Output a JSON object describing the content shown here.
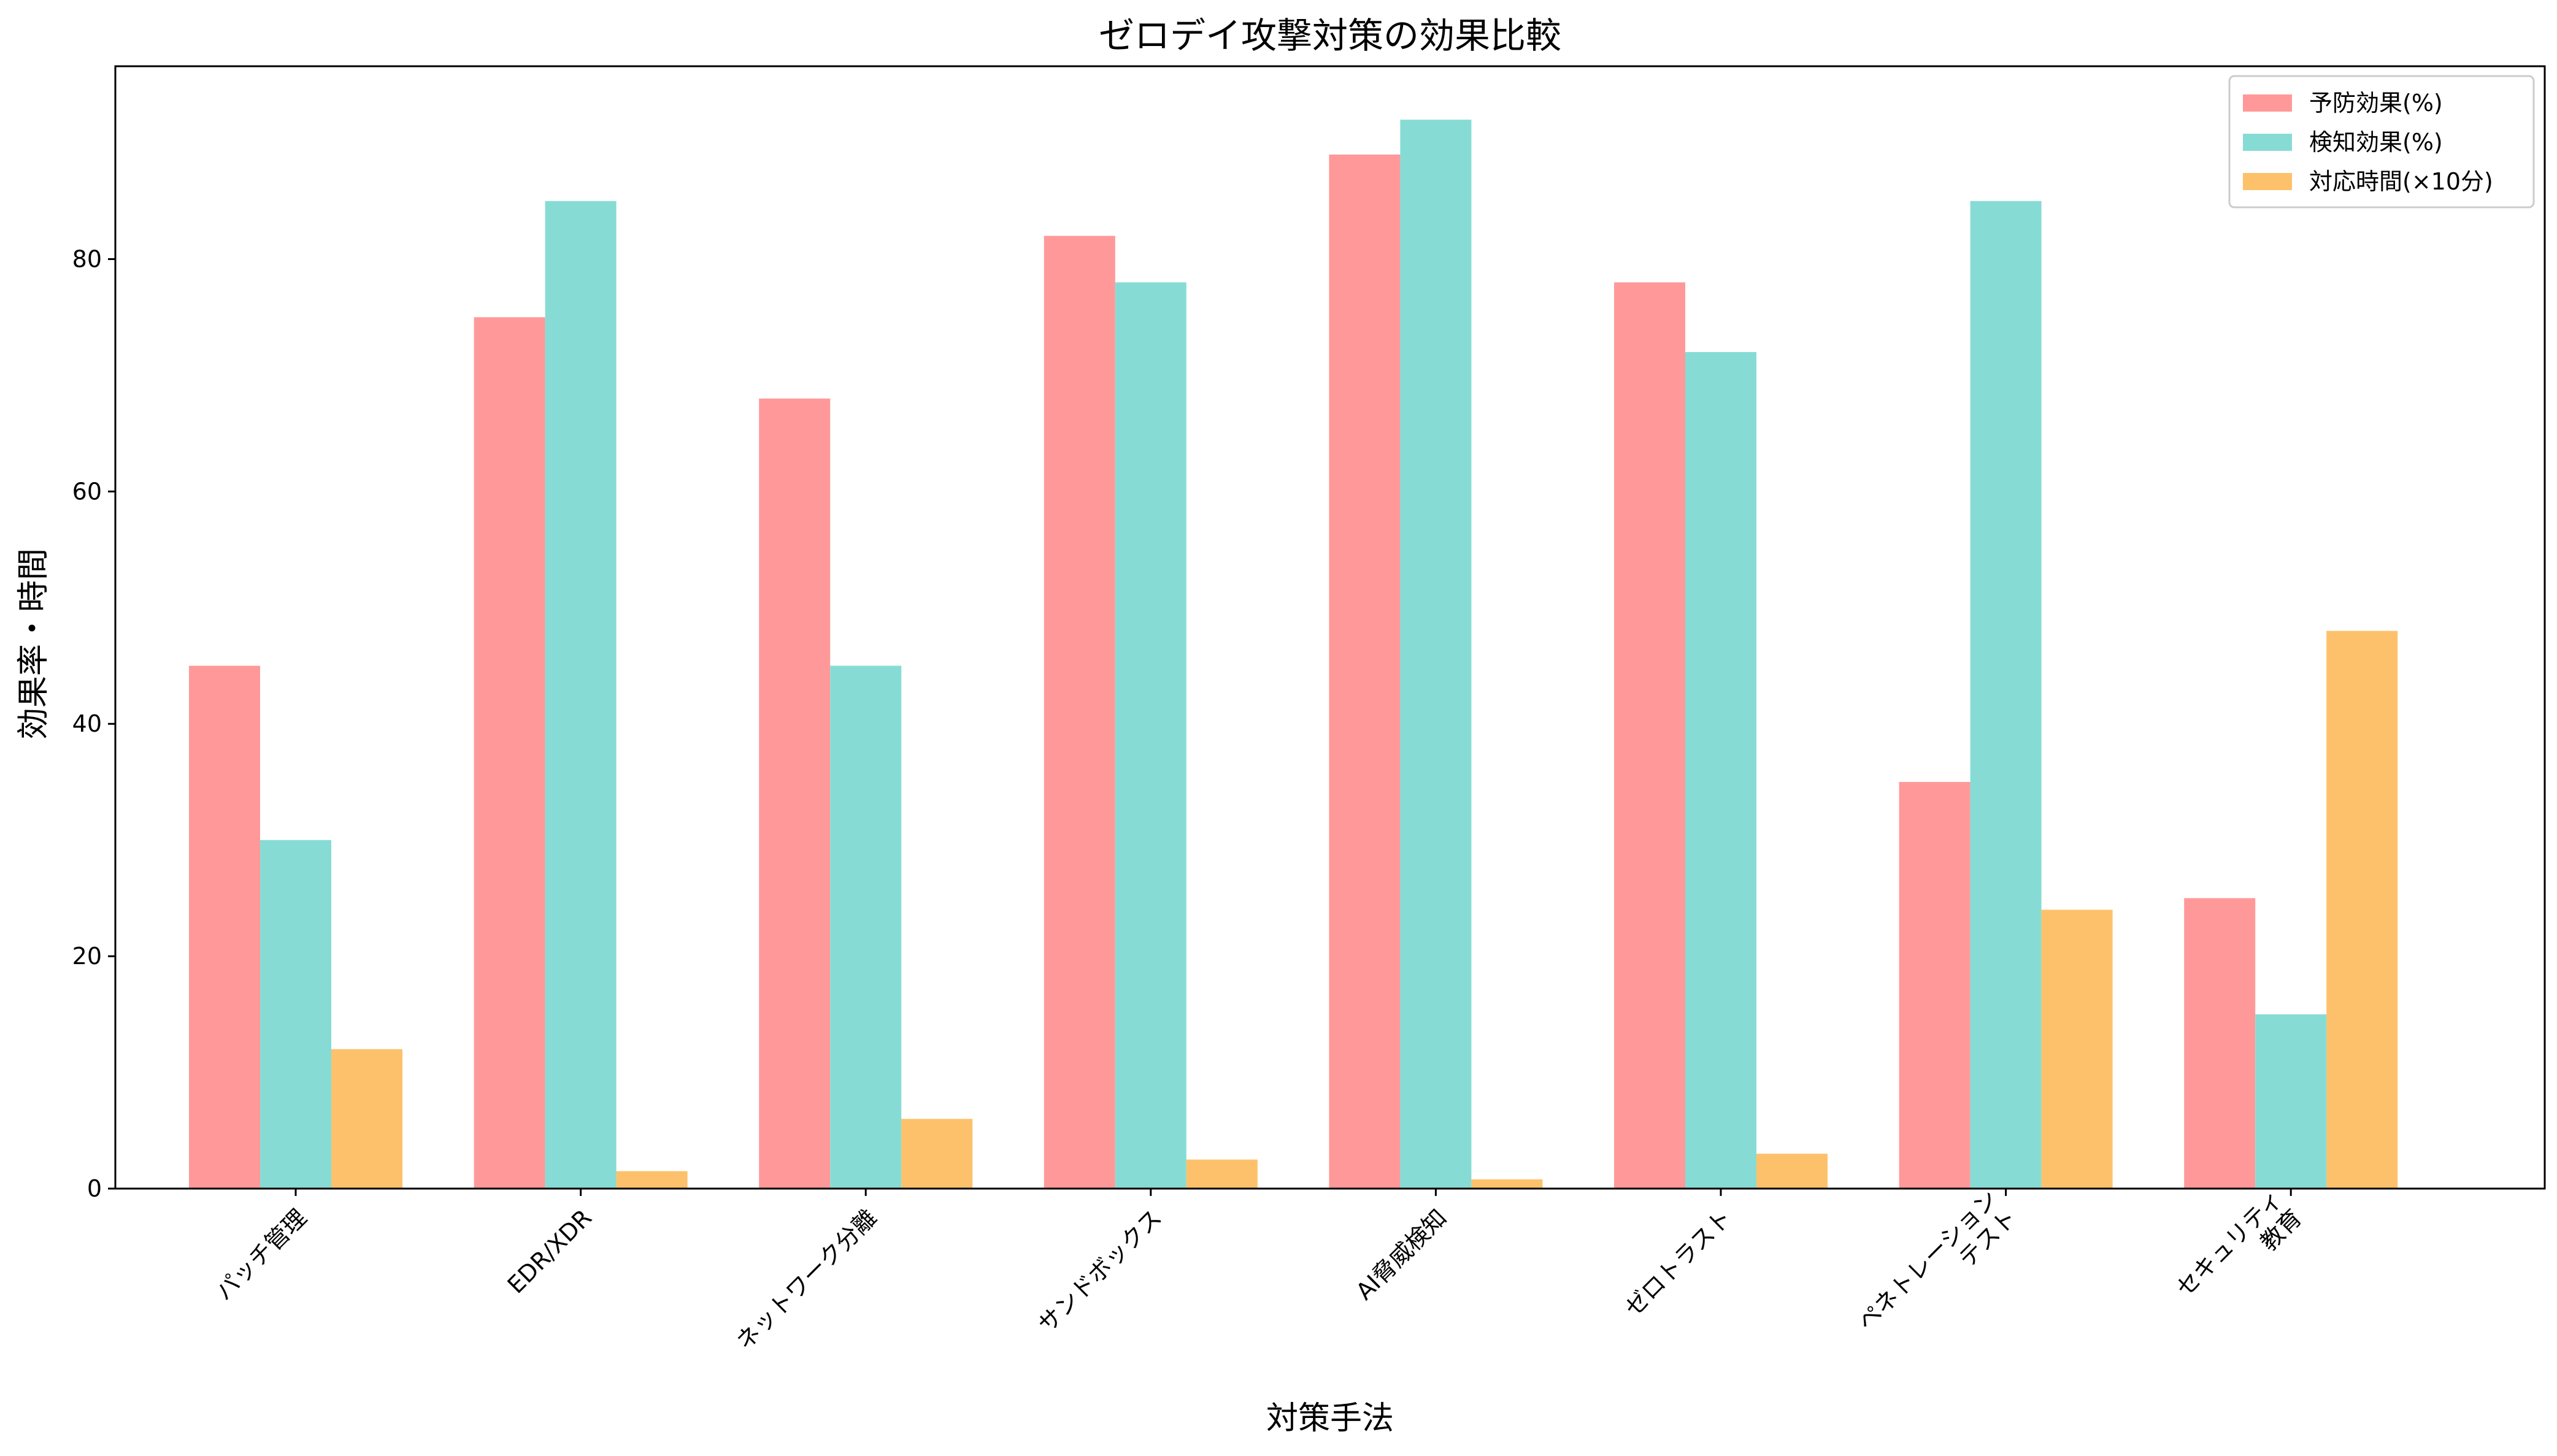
{
  "chart_data": {
    "type": "bar",
    "title": "ゼロデイ攻撃対策の効果比較",
    "xlabel": "対策手法",
    "ylabel": "効果率・時間",
    "categories": [
      "パッチ管理",
      "EDR/XDR",
      "ネットワーク分離",
      "サンドボックス",
      "AI脅威検知",
      "ゼロトラスト",
      "ペネトレーション\nテスト",
      "セキュリティ\n教育"
    ],
    "series": [
      {
        "name": "予防効果(%)",
        "color": "#ff9999",
        "values": [
          45,
          75,
          68,
          82,
          89,
          78,
          35,
          25
        ]
      },
      {
        "name": "検知効果(%)",
        "color": "#86dcd5",
        "values": [
          30,
          85,
          45,
          78,
          92,
          72,
          85,
          15
        ]
      },
      {
        "name": "対応時間(×10分)",
        "color": "#fdc16c",
        "values": [
          12,
          1.5,
          6,
          2.5,
          0.8,
          3,
          24,
          48
        ]
      }
    ],
    "ylim": [
      0,
      96.6
    ],
    "yticks": [
      0,
      20,
      40,
      60,
      80
    ],
    "legend_position": "top-right",
    "grid": false
  }
}
